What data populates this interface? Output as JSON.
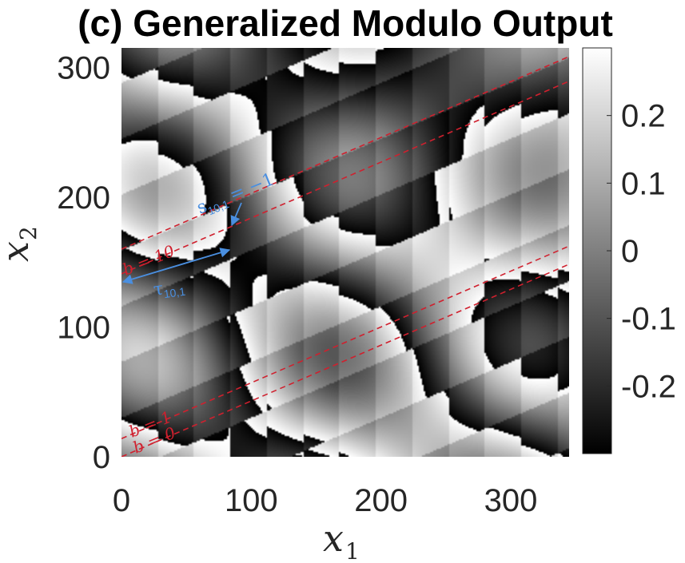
{
  "chart_data": {
    "type": "heatmap",
    "title": "(c) Generalized Modulo Output",
    "xlabel": "x",
    "xlabel_sub": "1",
    "ylabel": "x",
    "ylabel_sub": "2",
    "xlim": [
      0,
      345
    ],
    "ylim": [
      0,
      315
    ],
    "xticks": [
      0,
      100,
      200,
      300
    ],
    "yticks": [
      0,
      100,
      200,
      300
    ],
    "colorbar": {
      "range": [
        -0.3,
        0.3
      ],
      "ticks": [
        0.2,
        0.1,
        0,
        -0.1,
        -0.2
      ],
      "tick_labels": [
        "0.2",
        "0.1",
        "0",
        "-0.1",
        "-0.2"
      ],
      "colormap": "gray"
    },
    "grid": false,
    "band_lines": [
      {
        "label": "b = 0",
        "y_at_x0": 0,
        "slope": 0.43
      },
      {
        "label": "b = 1",
        "y_at_x0": 14,
        "slope": 0.43
      },
      {
        "label": "b = 10",
        "y_at_x0": 141,
        "slope": 0.43
      },
      {
        "label": "",
        "y_at_x0": 160,
        "slope": 0.43
      }
    ],
    "annotations": {
      "b0": "b = 0",
      "b1": "b = 1",
      "b10": "b = 10",
      "s_label": "s",
      "s_sub": "10,1",
      "s_value": "= −1",
      "tau_label": "τ",
      "tau_sub": "10,1"
    },
    "colors": {
      "band_line": "#d0202e",
      "annotation_blue": "#4a8fe0"
    }
  }
}
